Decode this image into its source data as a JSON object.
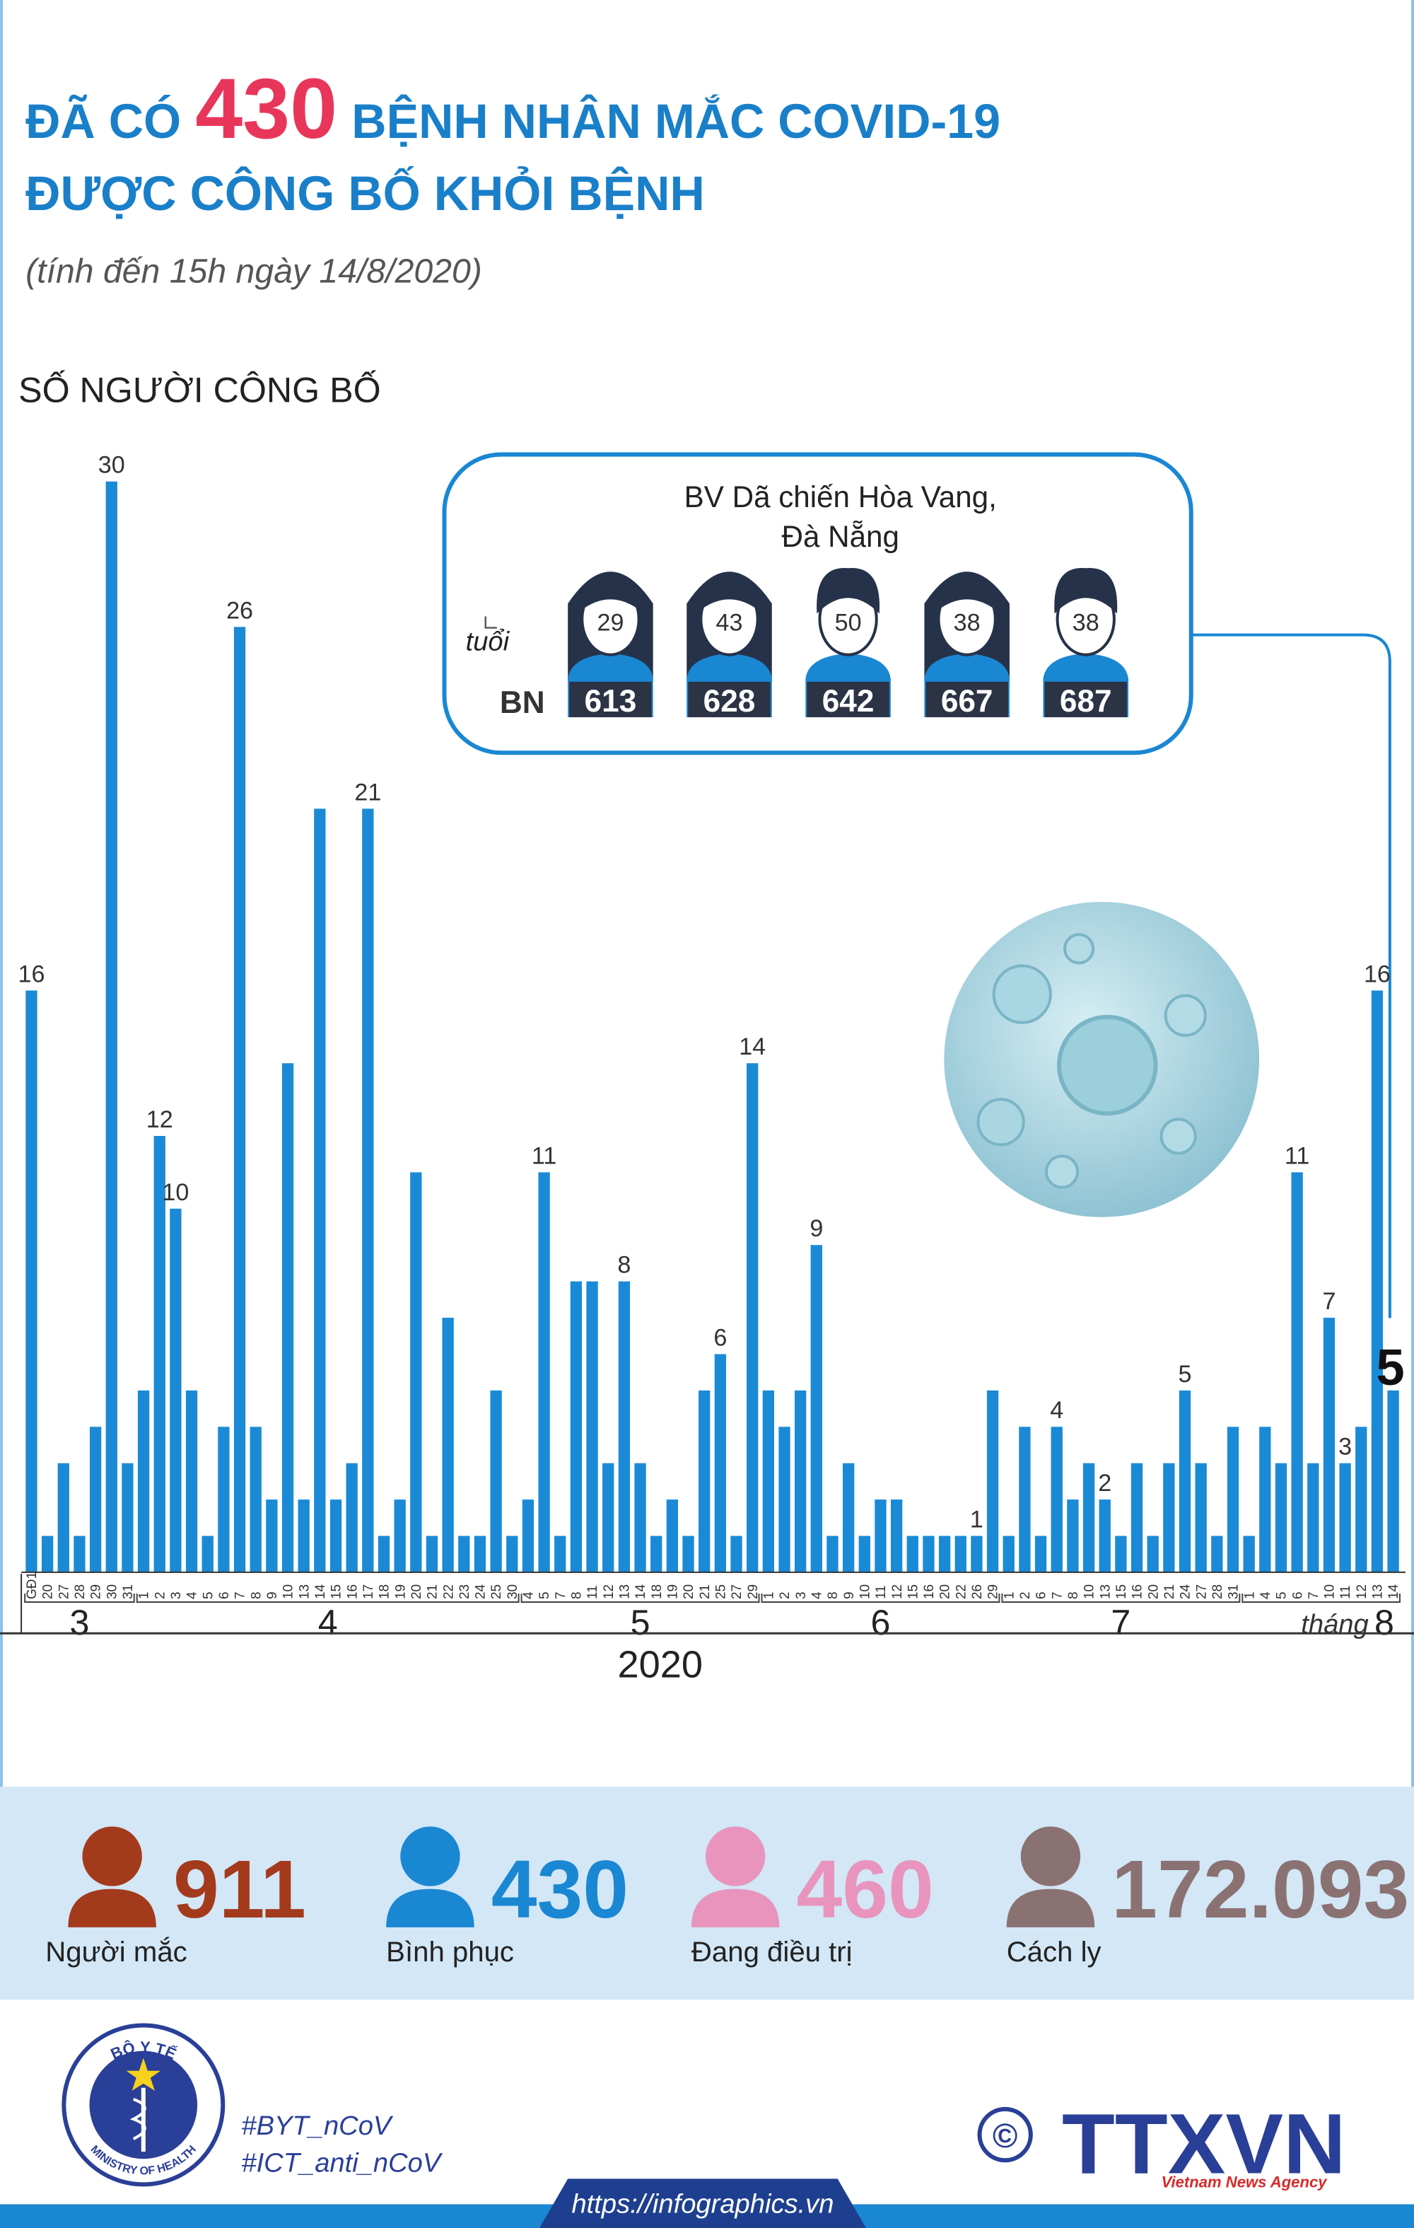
{
  "header": {
    "title_prefix": "ĐÃ CÓ",
    "title_number": "430",
    "title_rest": "BỆNH NHÂN MẮC COVID-19",
    "title_line2": "ĐƯỢC CÔNG BỐ KHỎI BỆNH",
    "subtitle": "(tính đến 15h ngày 14/8/2020)"
  },
  "chart_data": {
    "type": "bar",
    "ylabel": "SỐ NGƯỜI CÔNG BỐ",
    "color": "#1b8ad6",
    "ylim": [
      0,
      30
    ],
    "groups": [
      {
        "label": "3",
        "categories": [
          "GĐ1",
          "20",
          "27",
          "28",
          "29",
          "30",
          "31"
        ]
      },
      {
        "label": "4",
        "categories": [
          "1",
          "2",
          "3",
          "4",
          "5",
          "6",
          "7",
          "8",
          "9",
          "10",
          "13",
          "14",
          "15",
          "16",
          "17",
          "18",
          "19",
          "20",
          "21",
          "22",
          "23",
          "24",
          "25",
          "30"
        ]
      },
      {
        "label": "5",
        "categories": [
          "4",
          "5",
          "7",
          "8",
          "11",
          "12",
          "13",
          "14",
          "18",
          "19",
          "20",
          "21",
          "25",
          "27",
          "29"
        ]
      },
      {
        "label": "6",
        "categories": [
          "1",
          "2",
          "3",
          "4",
          "8",
          "9",
          "10",
          "11",
          "12",
          "15",
          "16",
          "20",
          "22",
          "26",
          "29"
        ]
      },
      {
        "label": "7",
        "categories": [
          "1",
          "2",
          "6",
          "7",
          "8",
          "10",
          "13",
          "15",
          "16",
          "20",
          "21",
          "24",
          "27",
          "28",
          "31"
        ]
      },
      {
        "label": "8",
        "categories": [
          "1",
          "4",
          "5",
          "6",
          "7",
          "10",
          "11",
          "12",
          "13",
          "14"
        ]
      }
    ],
    "month_prefix": "tháng",
    "year": "2020",
    "values": [
      16,
      1,
      3,
      1,
      4,
      30,
      3,
      5,
      12,
      10,
      5,
      1,
      4,
      26,
      4,
      2,
      14,
      2,
      21,
      2,
      3,
      21,
      1,
      2,
      11,
      1,
      7,
      1,
      1,
      5,
      1,
      2,
      11,
      1,
      8,
      8,
      3,
      8,
      3,
      1,
      2,
      1,
      5,
      6,
      1,
      14,
      5,
      4,
      5,
      9,
      1,
      3,
      1,
      2,
      2,
      1,
      1,
      1,
      1,
      1,
      5,
      1,
      4,
      1,
      4,
      2,
      3,
      2,
      1,
      3,
      1,
      3,
      5,
      3,
      1,
      4,
      1,
      4,
      3,
      11,
      3,
      7,
      3,
      4,
      16,
      5
    ],
    "value_labels": [
      "16",
      null,
      null,
      null,
      null,
      "30",
      null,
      null,
      "12",
      "10",
      null,
      null,
      null,
      "26",
      null,
      null,
      null,
      null,
      null,
      null,
      null,
      "21",
      null,
      null,
      null,
      null,
      null,
      null,
      null,
      null,
      null,
      null,
      "11",
      null,
      null,
      null,
      null,
      "8",
      null,
      null,
      null,
      null,
      null,
      "6",
      null,
      "14",
      null,
      null,
      null,
      "9",
      null,
      null,
      null,
      null,
      null,
      null,
      null,
      null,
      null,
      "1",
      null,
      null,
      null,
      null,
      "4",
      null,
      null,
      "2",
      null,
      null,
      null,
      null,
      "5",
      null,
      null,
      null,
      null,
      null,
      null,
      "11",
      null,
      "7",
      "3",
      null,
      "16",
      "5"
    ]
  },
  "callout": {
    "title": "BV Dã chiến Hòa Vang,",
    "title_line2": "Đà Nẵng",
    "age_label": "tuổi",
    "id_label": "BN",
    "patients": [
      {
        "age": 29,
        "id": 613,
        "hair": "long"
      },
      {
        "age": 43,
        "id": 628,
        "hair": "long"
      },
      {
        "age": 50,
        "id": 642,
        "hair": "short"
      },
      {
        "age": 38,
        "id": 667,
        "hair": "long"
      },
      {
        "age": 38,
        "id": 687,
        "hair": "short"
      }
    ]
  },
  "stats": [
    {
      "number": 911,
      "label": "Người mắc",
      "color": "#a43a1c"
    },
    {
      "number": 430,
      "label": "Bình phục",
      "color": "#1a87d3"
    },
    {
      "number": 460,
      "label": "Đang điều trị",
      "color": "#e894bd"
    },
    {
      "number": "172.093",
      "label": "Cách ly",
      "color": "#8a7272"
    }
  ],
  "footer": {
    "logo_top": "BỘ Y TẾ",
    "logo_bottom": "MINISTRY OF HEALTH",
    "hashtags": [
      "#BYT_nCoV",
      "#ICT_anti_nCoV"
    ],
    "copyright": "©",
    "agency": "TTXVN",
    "agency_sub": "Vietnam News Agency",
    "url": "https://infographics.vn"
  }
}
